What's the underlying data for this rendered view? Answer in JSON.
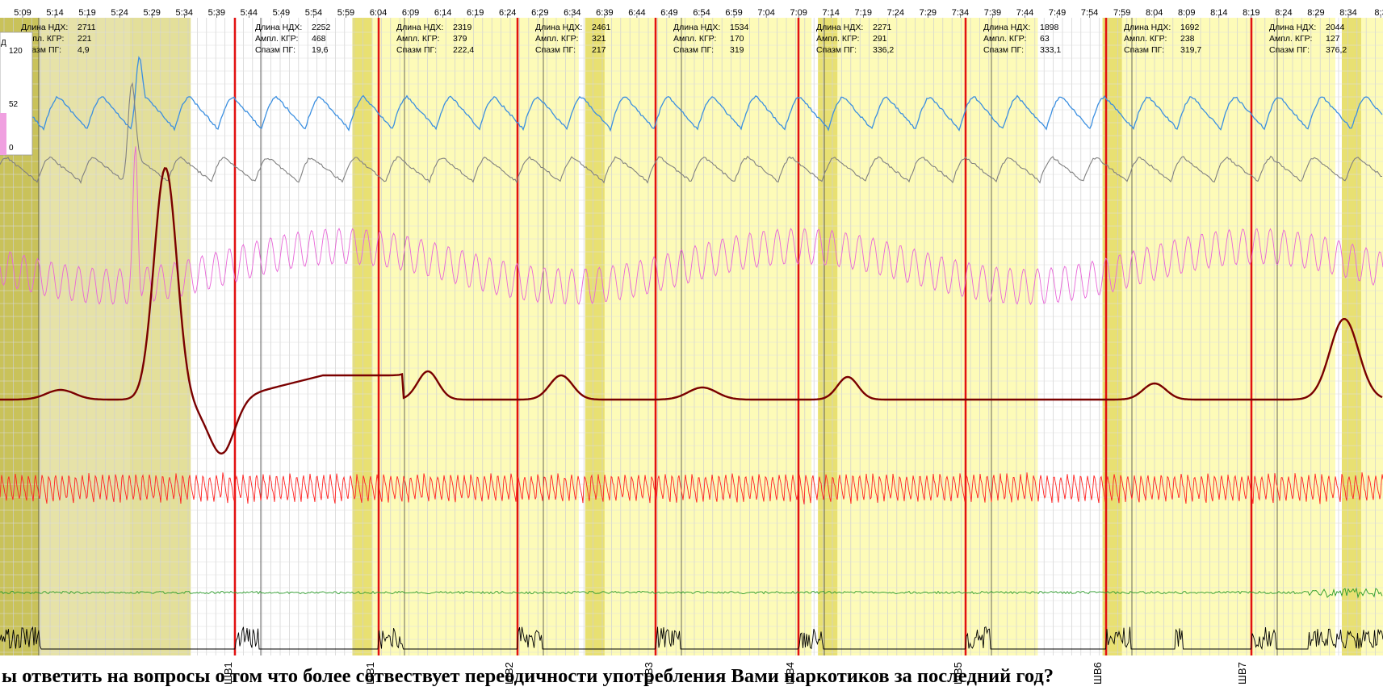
{
  "chart_data": {
    "type": "line",
    "title": "",
    "question_text": "ы ответить на вопросы о том что более сотвествует переодичности употребления Вами наркотиков за последний год?",
    "time_ticks": [
      "5:09",
      "5:14",
      "5:19",
      "5:24",
      "5:29",
      "5:34",
      "5:39",
      "5:44",
      "5:49",
      "5:54",
      "5:59",
      "6:04",
      "6:09",
      "6:14",
      "6:19",
      "6:24",
      "6:29",
      "6:34",
      "6:39",
      "6:44",
      "6:49",
      "6:54",
      "6:59",
      "7:04",
      "7:09",
      "7:14",
      "7:19",
      "7:24",
      "7:29",
      "7:34",
      "7:39",
      "7:44",
      "7:49",
      "7:54",
      "7:59",
      "8:04",
      "8:09",
      "8:14",
      "8:19",
      "8:24",
      "8:29",
      "8:34",
      "8:3"
    ],
    "x_range": [
      5.0,
      8.6
    ],
    "stat_labels": {
      "length": "Длина НДХ:",
      "amplitude": "Ампл. КГР:",
      "spasm": "Спазм ПГ:"
    },
    "segments": [
      {
        "start": 5.0,
        "end": 5.35,
        "stats": [
          "2711",
          "221",
          "4,9"
        ],
        "marker": ""
      },
      {
        "start": 5.6,
        "end": 5.95,
        "stats": [
          "2252",
          "468",
          "19,6"
        ],
        "marker": "ШВ1"
      },
      {
        "start": 5.99,
        "end": 6.35,
        "stats": [
          "2319",
          "379",
          "222,4"
        ],
        "marker": "ШВ1"
      },
      {
        "start": 6.36,
        "end": 6.71,
        "stats": [
          "2461",
          "321",
          "217"
        ],
        "marker": "ШВ2"
      },
      {
        "start": 6.73,
        "end": 7.08,
        "stats": [
          "1534",
          "170",
          "319"
        ],
        "marker": "ШВ3"
      },
      {
        "start": 7.12,
        "end": 7.46,
        "stats": [
          "2271",
          "291",
          "336,2"
        ],
        "marker": "ШВ4"
      },
      {
        "start": 7.56,
        "end": 7.92,
        "stats": [
          "1898",
          "63",
          "333,1"
        ],
        "marker": "ШВ5"
      },
      {
        "start": 7.94,
        "end": 8.28,
        "stats": [
          "1692",
          "238",
          "319,7"
        ],
        "marker": "ШВ6"
      },
      {
        "start": 8.33,
        "end": 8.6,
        "stats": [
          "2044",
          "127",
          "376,2"
        ],
        "marker": "ШВ7"
      }
    ],
    "scale": {
      "label": "Д",
      "ticks": [
        "120",
        "52",
        "0"
      ]
    },
    "series": [
      {
        "name": "upper-pneumogram",
        "color": "#3b8fe0"
      },
      {
        "name": "lower-pneumogram",
        "color": "#808080"
      },
      {
        "name": "plethysmogram",
        "color": "#e866d8"
      },
      {
        "name": "galvanic-skin-response",
        "color": "#7a0000"
      },
      {
        "name": "cardio",
        "color": "#ff2222"
      },
      {
        "name": "tremor",
        "color": "#2a9a2a"
      },
      {
        "name": "motion",
        "color": "#000000"
      }
    ]
  }
}
